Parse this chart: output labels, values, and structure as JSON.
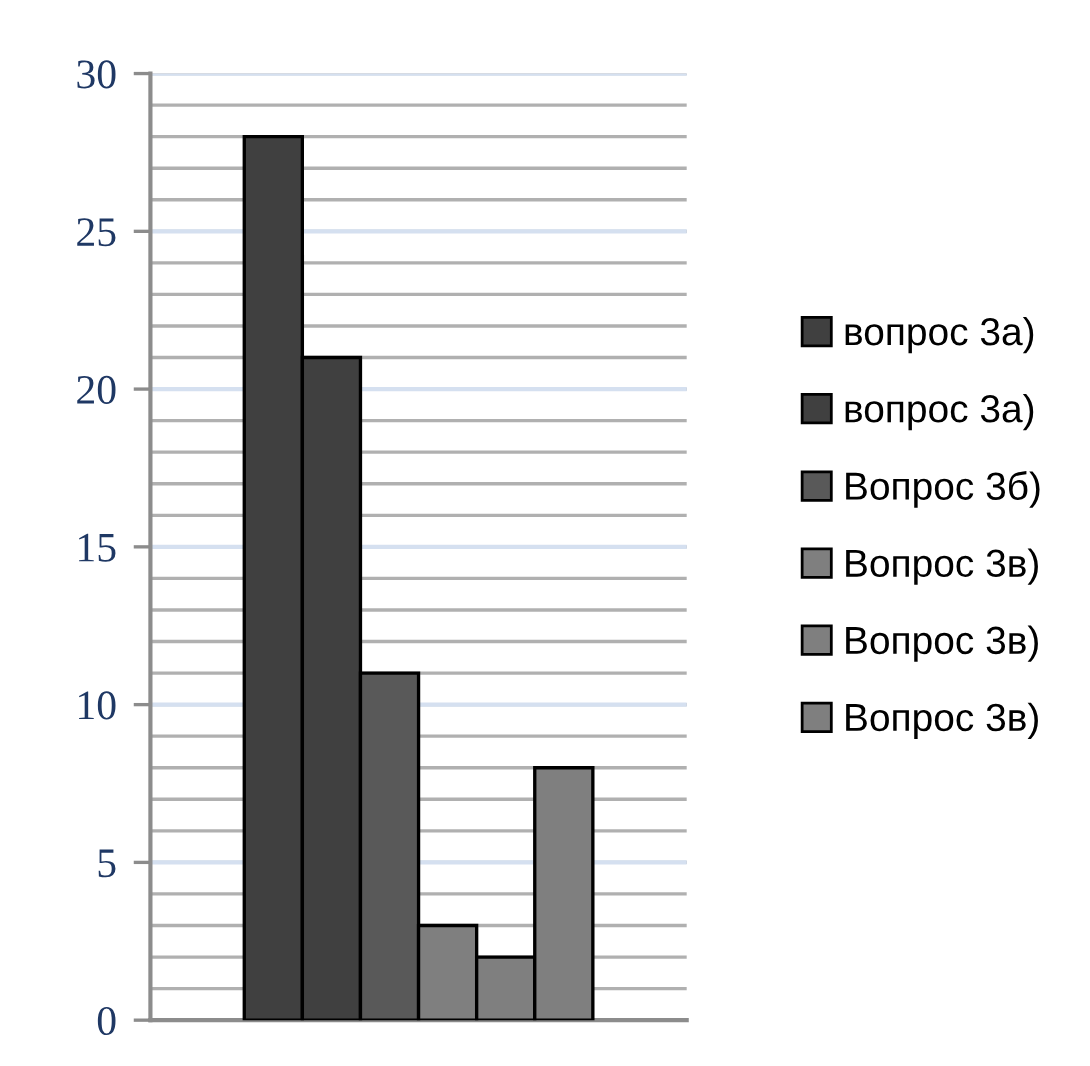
{
  "chart_data": {
    "type": "bar",
    "categories": [
      null
    ],
    "series": [
      {
        "name": "вопрос 3а)",
        "color": "#404040",
        "values": [
          28
        ]
      },
      {
        "name": "вопрос 3а)",
        "color": "#404040",
        "values": [
          21
        ]
      },
      {
        "name": "Вопрос 3б)",
        "color": "#595959",
        "values": [
          11
        ]
      },
      {
        "name": "Вопрос 3в)",
        "color": "#7f7f7f",
        "values": [
          3
        ]
      },
      {
        "name": "Вопрос 3в)",
        "color": "#7f7f7f",
        "values": [
          2
        ]
      },
      {
        "name": "Вопрос 3в)",
        "color": "#7f7f7f",
        "values": [
          8
        ]
      }
    ],
    "ylim": [
      0,
      30
    ],
    "yticks": [
      0,
      5,
      10,
      15,
      20,
      25,
      30
    ],
    "grid": "y",
    "legend": "right"
  }
}
